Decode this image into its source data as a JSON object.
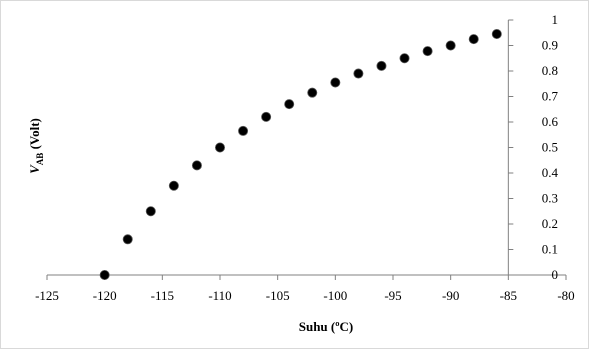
{
  "chart_data": {
    "type": "scatter",
    "xlabel": "Suhu (ºC)",
    "ylabel": {
      "main": "V",
      "subscript": "AB",
      "suffix": " (Volt)"
    },
    "xlim": [
      -125,
      -80
    ],
    "ylim": [
      0,
      1
    ],
    "x_ticks": [
      "-125",
      "-120",
      "-115",
      "-110",
      "-105",
      "-100",
      "-95",
      "-90",
      "-85",
      "-80"
    ],
    "y_ticks": [
      "0",
      "0.1",
      "0.2",
      "0.3",
      "0.4",
      "0.5",
      "0.6",
      "0.7",
      "0.8",
      "0.9",
      "1"
    ],
    "y_axis_position": "right",
    "grid": false,
    "marker_color": "#000000",
    "points": [
      {
        "x": -120,
        "y": 0.0
      },
      {
        "x": -118,
        "y": 0.14
      },
      {
        "x": -116,
        "y": 0.25
      },
      {
        "x": -114,
        "y": 0.35
      },
      {
        "x": -112,
        "y": 0.43
      },
      {
        "x": -110,
        "y": 0.5
      },
      {
        "x": -108,
        "y": 0.565
      },
      {
        "x": -106,
        "y": 0.62
      },
      {
        "x": -104,
        "y": 0.67
      },
      {
        "x": -102,
        "y": 0.715
      },
      {
        "x": -100,
        "y": 0.755
      },
      {
        "x": -98,
        "y": 0.79
      },
      {
        "x": -96,
        "y": 0.82
      },
      {
        "x": -94,
        "y": 0.85
      },
      {
        "x": -92,
        "y": 0.878
      },
      {
        "x": -90,
        "y": 0.9
      },
      {
        "x": -88,
        "y": 0.925
      },
      {
        "x": -86,
        "y": 0.945
      }
    ]
  }
}
